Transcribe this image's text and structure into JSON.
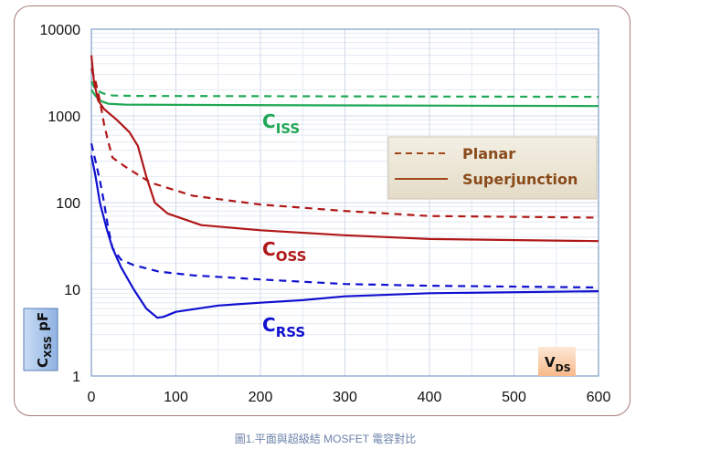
{
  "chart_data": {
    "type": "line",
    "title": "",
    "xlabel": "V_DS",
    "ylabel": "C_XSS pF",
    "xlim": [
      0,
      600
    ],
    "ylim": [
      1,
      10000
    ],
    "yscale": "log",
    "grid": true,
    "x_ticks": [
      "0",
      "100",
      "200",
      "300",
      "400",
      "500",
      "600"
    ],
    "y_ticks": [
      "1",
      "10",
      "100",
      "1000",
      "10000"
    ],
    "legend": {
      "placement": "right",
      "entries": [
        {
          "label": "Planar",
          "style": "dashed"
        },
        {
          "label": "Superjunction",
          "style": "solid"
        }
      ]
    },
    "annotations": [
      {
        "text": "C",
        "sub": "ISS",
        "color": "#1fa855"
      },
      {
        "text": "C",
        "sub": "OSS",
        "color": "#b01818"
      },
      {
        "text": "C",
        "sub": "RSS",
        "color": "#1010d0"
      }
    ],
    "x_label_text": "V",
    "x_label_sub": "DS",
    "y_label_text": "C",
    "y_label_sub": "XSS",
    "y_label_unit": "pF",
    "series": [
      {
        "name": "Ciss Superjunction",
        "color": "#1fa855",
        "dash": false,
        "x": [
          0,
          5,
          10,
          20,
          40,
          100,
          300,
          600
        ],
        "y": [
          2000,
          1700,
          1500,
          1380,
          1350,
          1340,
          1320,
          1300
        ]
      },
      {
        "name": "Ciss Planar",
        "color": "#1fa855",
        "dash": true,
        "x": [
          0,
          5,
          15,
          25,
          50,
          300,
          600
        ],
        "y": [
          2500,
          2000,
          1800,
          1720,
          1700,
          1680,
          1660
        ]
      },
      {
        "name": "Coss Superjunction",
        "color": "#b01818",
        "dash": false,
        "x": [
          0,
          3,
          8,
          15,
          30,
          45,
          55,
          65,
          75,
          90,
          130,
          200,
          300,
          400,
          600
        ],
        "y": [
          5000,
          2500,
          1500,
          1200,
          900,
          650,
          450,
          200,
          100,
          75,
          55,
          48,
          42,
          38,
          36
        ]
      },
      {
        "name": "Coss Planar",
        "color": "#b01818",
        "dash": true,
        "x": [
          0,
          5,
          10,
          15,
          20,
          25,
          40,
          70,
          120,
          200,
          300,
          400,
          600
        ],
        "y": [
          3500,
          2500,
          1500,
          800,
          500,
          330,
          260,
          170,
          120,
          95,
          80,
          70,
          67
        ]
      },
      {
        "name": "Crss Superjunction",
        "color": "#1010d0",
        "dash": false,
        "x": [
          0,
          5,
          10,
          18,
          25,
          35,
          50,
          65,
          78,
          85,
          100,
          150,
          200,
          250,
          300,
          400,
          600
        ],
        "y": [
          350,
          200,
          100,
          50,
          30,
          18,
          10,
          6,
          4.7,
          4.8,
          5.5,
          6.5,
          7,
          7.5,
          8.3,
          9,
          9.5
        ]
      },
      {
        "name": "Crss Planar",
        "color": "#1010d0",
        "dash": true,
        "x": [
          0,
          5,
          10,
          15,
          20,
          25,
          35,
          50,
          80,
          120,
          200,
          300,
          400,
          600
        ],
        "y": [
          480,
          300,
          180,
          100,
          50,
          30,
          22,
          19,
          16,
          14.5,
          13,
          11.5,
          11,
          10.5
        ]
      }
    ]
  },
  "caption": "圖1.平面與超級結 MOSFET 電容對比"
}
